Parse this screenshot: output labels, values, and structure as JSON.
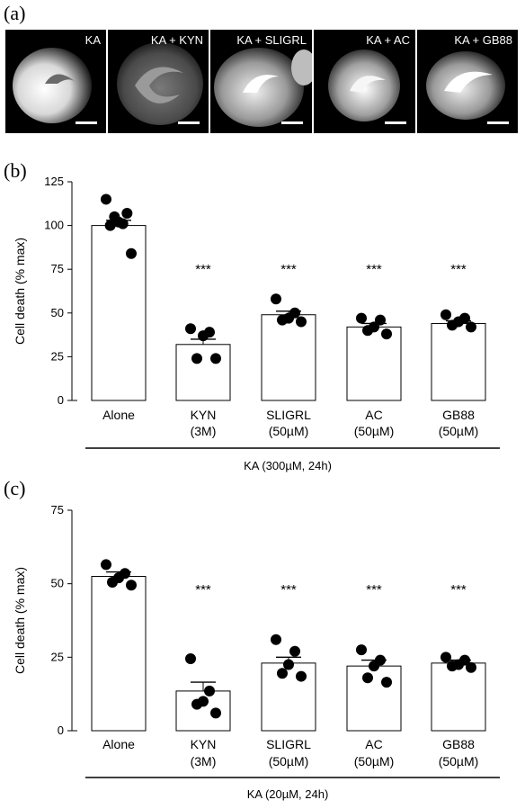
{
  "panel_letters": {
    "a": "(a)",
    "b": "(b)",
    "c": "(c)"
  },
  "images": {
    "tiles": [
      {
        "label": "KA"
      },
      {
        "label": "KA + KYN"
      },
      {
        "label": "KA + SLIGRL"
      },
      {
        "label": "KA + AC"
      },
      {
        "label": "KA + GB88"
      }
    ],
    "colors": {
      "background": "#000000",
      "label": "#ffffff"
    }
  },
  "chart_data": [
    {
      "type": "bar",
      "panel": "(b)",
      "ylabel": "Cell death (% max)",
      "ylim": [
        0,
        125
      ],
      "yticks": [
        0,
        25,
        50,
        75,
        100,
        125
      ],
      "categories": [
        "Alone",
        "KYN",
        "SLIGRL",
        "AC",
        "GB88"
      ],
      "category_sublabels": [
        "",
        "(3M)",
        "(50µM)",
        "(50µM)",
        "(50µM)"
      ],
      "values": [
        100,
        32,
        49,
        42,
        44
      ],
      "errors": [
        3,
        3,
        2,
        2,
        1.5
      ],
      "significance": [
        "",
        "***",
        "***",
        "***",
        "***"
      ],
      "points": [
        [
          115,
          107,
          105,
          102,
          101,
          100,
          84
        ],
        [
          41,
          39,
          37,
          24,
          24
        ],
        [
          58,
          50,
          47,
          46,
          45
        ],
        [
          47,
          46,
          42,
          40,
          38
        ],
        [
          49,
          47,
          45,
          43,
          42
        ]
      ],
      "group_label": "KA (300µM, 24h)"
    },
    {
      "type": "bar",
      "panel": "(c)",
      "ylabel": "Cell death (% max)",
      "ylim": [
        0,
        75
      ],
      "yticks": [
        0,
        25,
        50,
        75
      ],
      "categories": [
        "Alone",
        "KYN",
        "SLIGRL",
        "AC",
        "GB88"
      ],
      "category_sublabels": [
        "",
        "(3M)",
        "(50µM)",
        "(50µM)",
        "(50µM)"
      ],
      "values": [
        52.5,
        13.5,
        23,
        22,
        23
      ],
      "errors": [
        1.5,
        3,
        2,
        2,
        1
      ],
      "significance": [
        "",
        "***",
        "***",
        "***",
        "***"
      ],
      "points": [
        [
          56.5,
          53.5,
          52,
          50.5,
          49.5
        ],
        [
          24.5,
          13.5,
          10,
          9,
          6
        ],
        [
          31,
          27,
          22.5,
          19.5,
          18.5
        ],
        [
          27.5,
          24,
          22,
          18,
          16.5
        ],
        [
          25,
          24,
          22.5,
          22,
          21.5
        ]
      ],
      "group_label": "KA (20µM, 24h)"
    }
  ]
}
